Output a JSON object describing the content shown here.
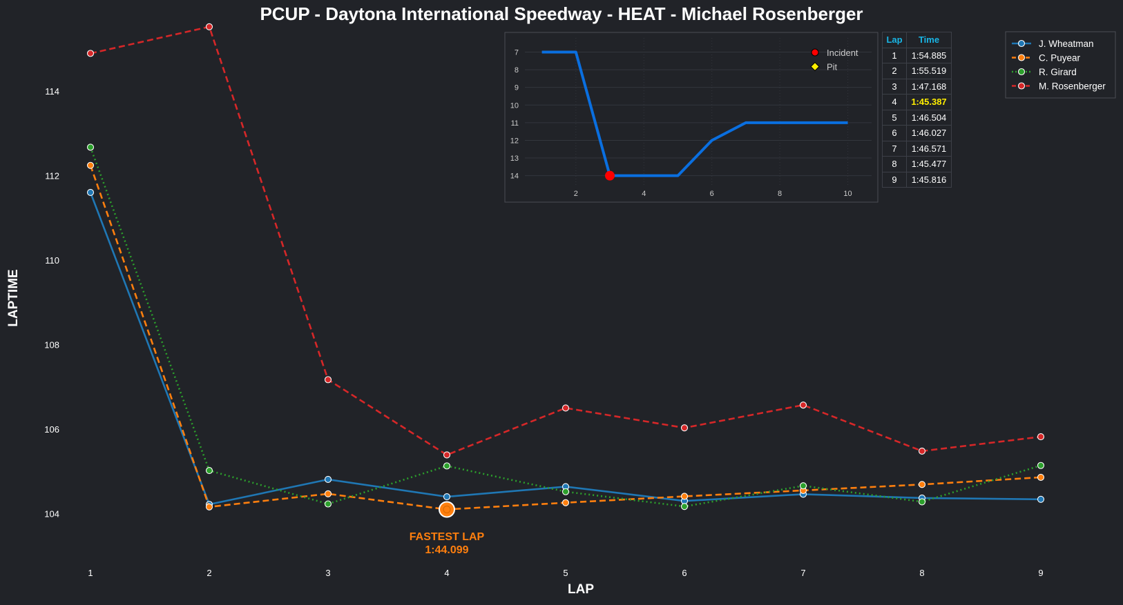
{
  "chart_data": [
    {
      "type": "line",
      "title": "PCUP - Daytona International Speedway - HEAT - Michael Rosenberger",
      "xlabel": "LAP",
      "ylabel": "LAPTIME",
      "x": [
        1,
        2,
        3,
        4,
        5,
        6,
        7,
        8,
        9
      ],
      "xticks": [
        1,
        2,
        3,
        4,
        5,
        6,
        7,
        8,
        9
      ],
      "yticks": [
        104,
        106,
        108,
        110,
        112,
        114
      ],
      "ylim": [
        102.9,
        115.5
      ],
      "xlim": [
        0.5,
        9.5
      ],
      "grid": false,
      "legend": "top-right",
      "series": [
        {
          "name": "J. Wheatman",
          "color": "#1f77b4",
          "style": "solid",
          "values": [
            111.6,
            104.22,
            104.81,
            104.4,
            104.64,
            104.3,
            104.46,
            104.37,
            104.34
          ]
        },
        {
          "name": "C. Puyear",
          "color": "#ff7f0e",
          "style": "dashed",
          "values": [
            112.24,
            104.16,
            104.47,
            104.1,
            104.26,
            104.41,
            104.55,
            104.69,
            104.86
          ]
        },
        {
          "name": "R. Girard",
          "color": "#2ca02c",
          "style": "dotted",
          "values": [
            112.67,
            105.02,
            104.23,
            105.13,
            104.52,
            104.17,
            104.66,
            104.28,
            105.14
          ]
        },
        {
          "name": "M. Rosenberger",
          "color": "#d62728",
          "style": "dashed",
          "values": [
            114.89,
            115.52,
            107.17,
            105.39,
            106.5,
            106.03,
            106.57,
            105.48,
            105.82
          ]
        }
      ],
      "annotation": {
        "text": [
          "FASTEST LAP",
          "1:44.099"
        ],
        "lap": 4,
        "value": 104.1,
        "color": "#ff7f0e"
      }
    },
    {
      "type": "line",
      "subject": "position",
      "x": [
        1,
        2,
        3,
        4,
        5,
        6,
        7,
        8,
        9,
        10
      ],
      "values": [
        7,
        7,
        14,
        14,
        14,
        12,
        11,
        11,
        11,
        11
      ],
      "color": "#0a6fe0",
      "xticks": [
        2,
        4,
        6,
        8,
        10
      ],
      "yticks": [
        7,
        8,
        9,
        10,
        11,
        12,
        13,
        14
      ],
      "xlim": [
        0.5,
        10.7
      ],
      "ylim": [
        6.2,
        14.6
      ],
      "y_inverted": true,
      "grid": true,
      "legend": "top-right",
      "markers": [
        {
          "label": "Incident",
          "x": 3,
          "y": 14,
          "color": "#ff0000",
          "shape": "circle"
        }
      ],
      "legend_entries": [
        {
          "label": "Incident",
          "color": "#ff0000",
          "shape": "circle"
        },
        {
          "label": "Pit",
          "color": "#ffee00",
          "shape": "diamond"
        }
      ]
    }
  ],
  "lap_table": {
    "headers": [
      "Lap",
      "Time"
    ],
    "best_lap": 4,
    "rows": [
      [
        "1",
        "1:54.885"
      ],
      [
        "2",
        "1:55.519"
      ],
      [
        "3",
        "1:47.168"
      ],
      [
        "4",
        "1:45.387"
      ],
      [
        "5",
        "1:46.504"
      ],
      [
        "6",
        "1:46.027"
      ],
      [
        "7",
        "1:46.571"
      ],
      [
        "8",
        "1:45.477"
      ],
      [
        "9",
        "1:45.816"
      ]
    ]
  },
  "colors": {
    "background": "#212328",
    "table_header": "#19b6e6",
    "best_time": "#ffee00",
    "inset_grid": "#33363d"
  }
}
